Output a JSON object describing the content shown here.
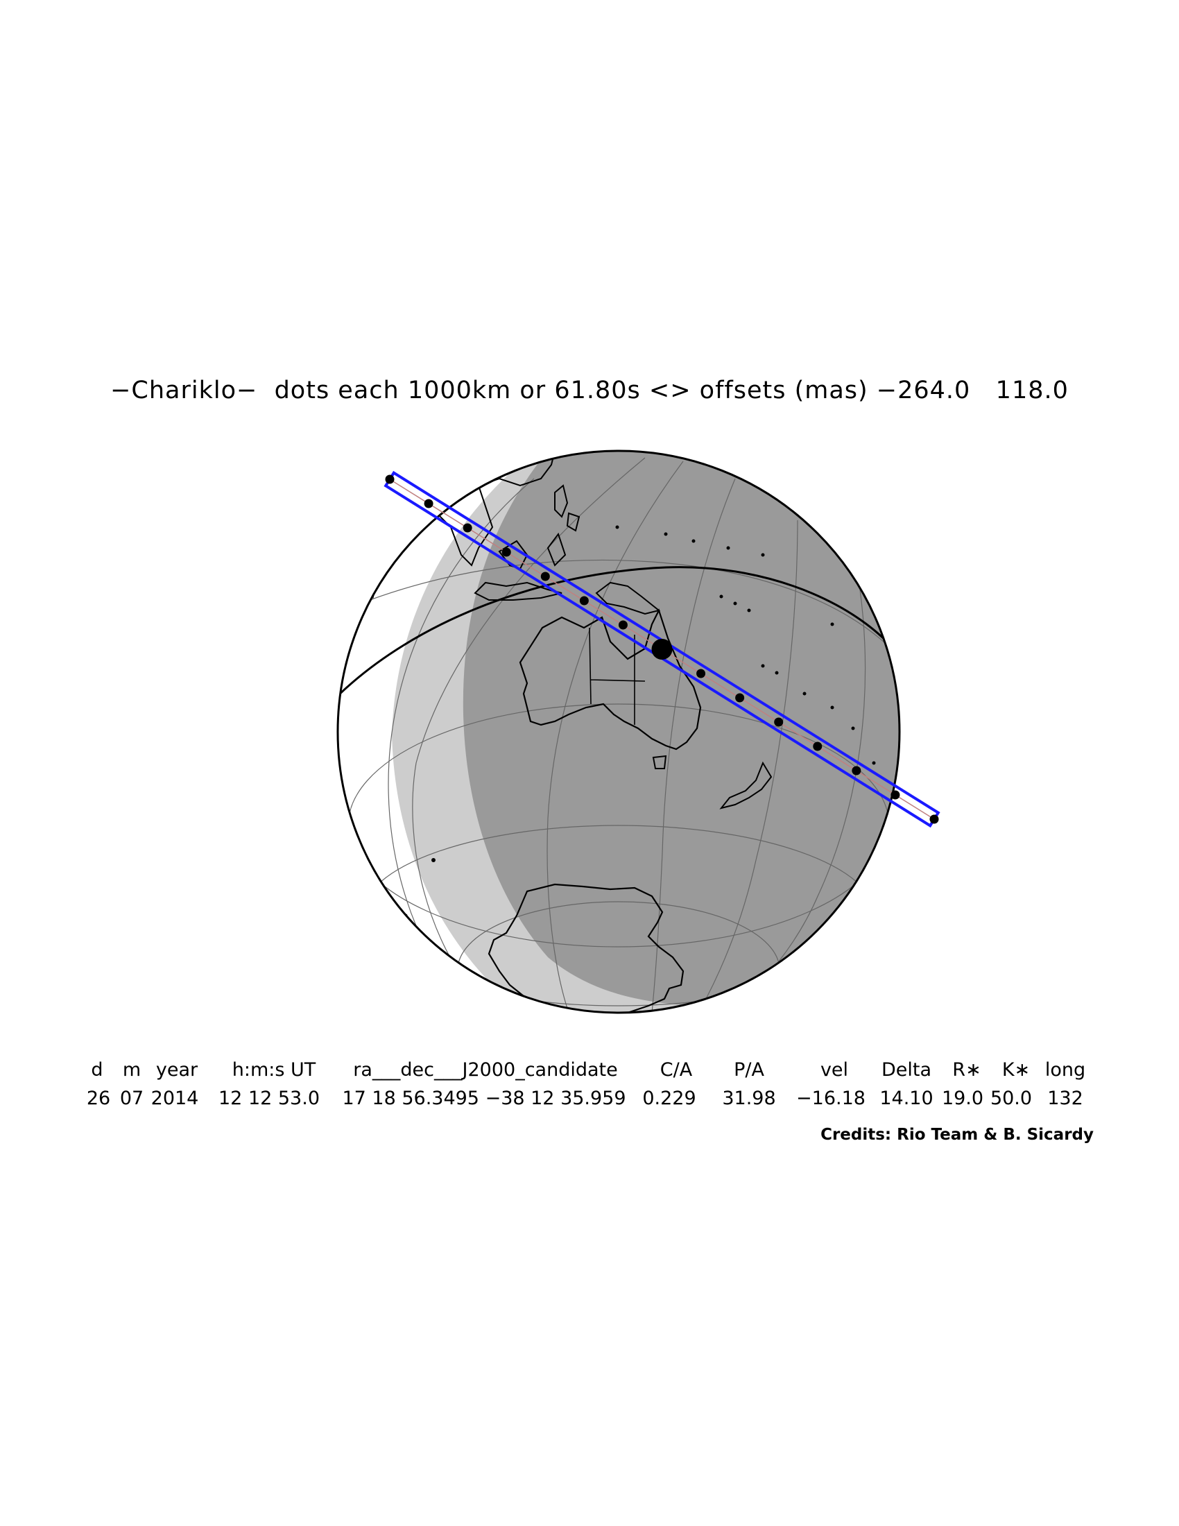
{
  "title": "−Chariklo−  dots each 1000km or 61.80s <> offsets (mas) −264.0   118.0",
  "table": {
    "headers": [
      "d",
      "m",
      "year",
      "h:m:s UT",
      "ra___dec___J2000_candidate",
      "C/A",
      "P/A",
      "vel",
      "Delta",
      "R∗",
      "K∗",
      "long"
    ],
    "values": [
      "26",
      "07",
      "2014",
      "12 12 53.0",
      "17 18 56.3495 −38 12 35.959",
      "0.229",
      "31.98",
      "−16.18",
      "14.10",
      "19.0",
      "50.0",
      "132"
    ]
  },
  "credits": "Credits: Rio Team & B. Sicardy",
  "colors": {
    "night": "#9a9a9a",
    "twilight": "#cdcdcd",
    "day": "#ffffff",
    "path": "#1a1aff",
    "outline": "#000000"
  },
  "path": {
    "dots_count": 15,
    "closest_approach_dot_index": 7,
    "dot_spacing": "1000km or 61.80s"
  }
}
